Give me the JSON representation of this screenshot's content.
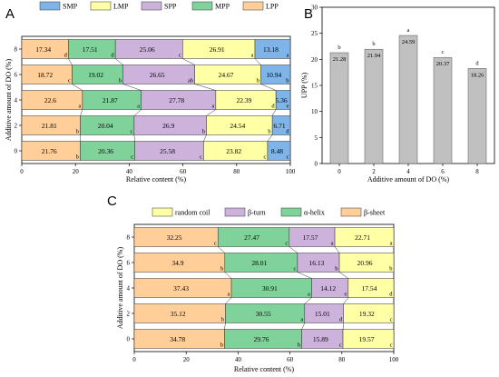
{
  "colors": {
    "LPP": "#FFCE99",
    "MPP": "#7FD39A",
    "SPP": "#CDB3DC",
    "LMP": "#FFFFA6",
    "SMP": "#7FB4E9",
    "random_coil": "#FFFFA6",
    "beta_turn": "#CDB3DC",
    "alpha_helix": "#7FD39A",
    "beta_sheet": "#FFCE99",
    "upp_bar": "#C0C0C0"
  },
  "chart_data": [
    {
      "panel": "A",
      "type": "bar",
      "orientation": "horizontal-stacked",
      "categories": [
        "0",
        "2",
        "4",
        "6",
        "8"
      ],
      "xlabel": "Relative content (%)",
      "ylabel": "Additive amount of DO (%)",
      "xlim": [
        0,
        100
      ],
      "xticks": [
        "0",
        "20",
        "40",
        "60",
        "80",
        "100"
      ],
      "legend": [
        "SMP",
        "LMP",
        "SPP",
        "MPP",
        "LPP"
      ],
      "legend_placement": "top",
      "series": [
        {
          "name": "LPP",
          "color_key": "LPP",
          "values": [
            21.76,
            21.81,
            22.6,
            18.72,
            17.34
          ],
          "labels": [
            "b",
            "b",
            "a",
            "c",
            "d"
          ]
        },
        {
          "name": "MPP",
          "color_key": "MPP",
          "values": [
            20.36,
            20.04,
            21.87,
            19.02,
            17.51
          ],
          "labels": [
            "c",
            "c",
            "a",
            "b",
            "d"
          ]
        },
        {
          "name": "SPP",
          "color_key": "SPP",
          "values": [
            25.58,
            26.9,
            27.78,
            26.65,
            25.06
          ],
          "labels": [
            "c",
            "b",
            "a",
            "ab",
            "c"
          ]
        },
        {
          "name": "LMP",
          "color_key": "LMP",
          "values": [
            23.82,
            24.54,
            22.39,
            24.67,
            26.91
          ],
          "labels": [
            "c",
            "b",
            "d",
            "b",
            "a"
          ]
        },
        {
          "name": "SMP",
          "color_key": "SMP",
          "values": [
            8.48,
            6.71,
            5.36,
            10.94,
            13.18
          ],
          "labels": [
            "c",
            "d",
            "e",
            "b",
            "a"
          ]
        }
      ]
    },
    {
      "panel": "B",
      "type": "bar",
      "categories": [
        "0",
        "2",
        "4",
        "6",
        "8"
      ],
      "values": [
        21.28,
        21.94,
        24.59,
        20.37,
        18.26
      ],
      "labels": [
        "b",
        "b",
        "a",
        "c",
        "d"
      ],
      "xlabel": "Additive amount of DO (%)",
      "ylabel": "UPP (%)",
      "ylim": [
        0,
        30
      ],
      "yticks": [
        "0",
        "5",
        "10",
        "15",
        "20",
        "25",
        "30"
      ]
    },
    {
      "panel": "C",
      "type": "bar",
      "orientation": "horizontal-stacked",
      "categories": [
        "0",
        "2",
        "4",
        "6",
        "8"
      ],
      "xlabel": "Relative content (%)",
      "ylabel": "Additive amount of DO (%)",
      "xlim": [
        0,
        100
      ],
      "xticks": [
        "0",
        "20",
        "40",
        "60",
        "80",
        "100"
      ],
      "legend": [
        "random coil",
        "β-turn",
        "α-helix",
        "β-sheet"
      ],
      "legend_placement": "top",
      "series": [
        {
          "name": "β-sheet",
          "color_key": "beta_sheet",
          "values": [
            34.78,
            35.12,
            37.43,
            34.9,
            32.25
          ],
          "labels": [
            "b",
            "b",
            "a",
            "b",
            "c"
          ]
        },
        {
          "name": "α-helix",
          "color_key": "alpha_helix",
          "values": [
            29.76,
            30.55,
            30.91,
            28.01,
            27.47
          ],
          "labels": [
            "b",
            "a",
            "a",
            "c",
            "c"
          ]
        },
        {
          "name": "β-turn",
          "color_key": "beta_turn",
          "values": [
            15.89,
            15.01,
            14.12,
            16.13,
            17.57
          ],
          "labels": [
            "c",
            "d",
            "e",
            "b",
            "a"
          ]
        },
        {
          "name": "random coil",
          "color_key": "random_coil",
          "values": [
            19.57,
            19.32,
            17.54,
            20.96,
            22.71
          ],
          "labels": [
            "c",
            "c",
            "d",
            "b",
            "a"
          ]
        }
      ]
    }
  ],
  "panels": {
    "A": "A",
    "B": "B",
    "C": "C"
  }
}
